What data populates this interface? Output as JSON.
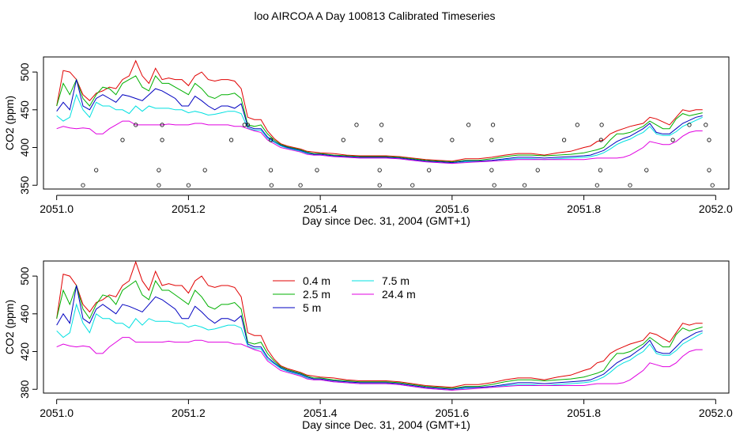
{
  "page": {
    "title": "loo AIRCOA A  Day 100813  Calibrated Timeseries"
  },
  "chart_data": [
    {
      "type": "line",
      "xlabel": "Day since Dec. 31, 2004 (GMT+1)",
      "ylabel": "CO2 (ppm)",
      "xlim": [
        2050.98,
        2052.02
      ],
      "ylim": [
        345,
        520
      ],
      "xticks": [
        "2051.0",
        "2051.2",
        "2051.4",
        "2051.6",
        "2051.8",
        "2052.0"
      ],
      "yticks": [
        "350",
        "400",
        "450",
        "500"
      ],
      "xtick_values": [
        2051.0,
        2051.2,
        2051.4,
        2051.6,
        2051.8,
        2052.0
      ],
      "ytick_values": [
        350,
        400,
        450,
        500
      ],
      "x": [
        2051.0,
        2051.01,
        2051.02,
        2051.03,
        2051.04,
        2051.05,
        2051.06,
        2051.07,
        2051.08,
        2051.09,
        2051.1,
        2051.11,
        2051.12,
        2051.13,
        2051.14,
        2051.15,
        2051.16,
        2051.17,
        2051.18,
        2051.19,
        2051.2,
        2051.21,
        2051.22,
        2051.23,
        2051.24,
        2051.25,
        2051.26,
        2051.27,
        2051.28,
        2051.29,
        2051.3,
        2051.31,
        2051.32,
        2051.33,
        2051.34,
        2051.35,
        2051.36,
        2051.37,
        2051.38,
        2051.39,
        2051.4,
        2051.42,
        2051.44,
        2051.46,
        2051.48,
        2051.5,
        2051.52,
        2051.54,
        2051.56,
        2051.58,
        2051.6,
        2051.62,
        2051.64,
        2051.66,
        2051.68,
        2051.7,
        2051.72,
        2051.74,
        2051.76,
        2051.78,
        2051.8,
        2051.81,
        2051.82,
        2051.83,
        2051.84,
        2051.85,
        2051.86,
        2051.87,
        2051.88,
        2051.89,
        2051.9,
        2051.91,
        2051.92,
        2051.93,
        2051.94,
        2051.95,
        2051.96,
        2051.97,
        2051.98
      ],
      "series": [
        {
          "name": "0.4 m",
          "color": "#e00000",
          "values": [
            455,
            502,
            500,
            490,
            470,
            462,
            472,
            475,
            480,
            478,
            490,
            495,
            515,
            495,
            485,
            505,
            490,
            492,
            490,
            490,
            482,
            495,
            500,
            490,
            488,
            490,
            490,
            488,
            478,
            440,
            437,
            437,
            422,
            412,
            405,
            402,
            400,
            398,
            395,
            394,
            393,
            392,
            390,
            389,
            389,
            389,
            388,
            386,
            384,
            383,
            382,
            385,
            385,
            387,
            390,
            392,
            392,
            390,
            393,
            395,
            400,
            402,
            408,
            410,
            418,
            422,
            425,
            428,
            430,
            432,
            440,
            438,
            434,
            430,
            440,
            450,
            448,
            450,
            450
          ]
        },
        {
          "name": "2.5 m",
          "color": "#00b000",
          "values": [
            455,
            485,
            470,
            490,
            465,
            455,
            470,
            480,
            478,
            470,
            485,
            490,
            495,
            480,
            475,
            495,
            485,
            485,
            480,
            475,
            470,
            485,
            478,
            468,
            465,
            470,
            470,
            472,
            465,
            430,
            428,
            430,
            418,
            410,
            404,
            401,
            399,
            397,
            394,
            392,
            392,
            390,
            389,
            388,
            388,
            388,
            387,
            385,
            383,
            382,
            381,
            383,
            383,
            385,
            388,
            390,
            390,
            389,
            390,
            391,
            393,
            395,
            397,
            400,
            410,
            418,
            418,
            420,
            424,
            428,
            435,
            430,
            425,
            425,
            438,
            445,
            442,
            444,
            446
          ]
        },
        {
          "name": "5 m",
          "color": "#0000c0",
          "values": [
            448,
            460,
            450,
            490,
            455,
            450,
            465,
            470,
            465,
            460,
            470,
            468,
            465,
            462,
            470,
            478,
            475,
            470,
            465,
            455,
            455,
            468,
            462,
            455,
            450,
            455,
            455,
            452,
            458,
            428,
            425,
            425,
            414,
            408,
            403,
            400,
            398,
            396,
            393,
            391,
            391,
            389,
            388,
            387,
            387,
            387,
            386,
            384,
            382,
            381,
            380,
            382,
            382,
            383,
            385,
            387,
            387,
            386,
            387,
            388,
            389,
            390,
            393,
            396,
            402,
            408,
            412,
            415,
            420,
            425,
            432,
            420,
            418,
            418,
            425,
            432,
            436,
            440,
            442
          ]
        },
        {
          "name": "7.5 m",
          "color": "#00e0e0",
          "values": [
            442,
            435,
            440,
            470,
            450,
            440,
            460,
            455,
            455,
            450,
            450,
            445,
            455,
            448,
            455,
            452,
            452,
            452,
            450,
            450,
            446,
            448,
            446,
            443,
            444,
            446,
            448,
            448,
            445,
            426,
            423,
            423,
            412,
            407,
            402,
            399,
            397,
            395,
            392,
            390,
            390,
            388,
            387,
            386,
            386,
            386,
            385,
            383,
            381,
            380,
            379,
            381,
            381,
            382,
            384,
            385,
            385,
            384,
            385,
            386,
            387,
            388,
            390,
            393,
            398,
            404,
            408,
            411,
            416,
            420,
            428,
            418,
            416,
            416,
            421,
            428,
            432,
            436,
            440
          ]
        },
        {
          "name": "24.4 m",
          "color": "#e000e0",
          "values": [
            425,
            428,
            426,
            425,
            426,
            425,
            418,
            418,
            425,
            430,
            435,
            435,
            430,
            430,
            430,
            430,
            430,
            431,
            430,
            430,
            430,
            432,
            432,
            430,
            430,
            430,
            430,
            428,
            428,
            425,
            422,
            420,
            410,
            405,
            400,
            398,
            396,
            394,
            391,
            390,
            390,
            388,
            387,
            386,
            386,
            386,
            385,
            383,
            381,
            380,
            379,
            380,
            381,
            382,
            383,
            384,
            384,
            384,
            384,
            384,
            384,
            385,
            386,
            386,
            386,
            386,
            387,
            390,
            395,
            400,
            408,
            406,
            404,
            404,
            408,
            415,
            420,
            422,
            422
          ]
        }
      ],
      "scatter": {
        "x": [
          2051.04,
          2051.06,
          2051.1,
          2051.12,
          2051.155,
          2051.155,
          2051.16,
          2051.16,
          2051.2,
          2051.225,
          2051.265,
          2051.285,
          2051.29,
          2051.325,
          2051.325,
          2051.326,
          2051.37,
          2051.395,
          2051.435,
          2051.455,
          2051.49,
          2051.49,
          2051.492,
          2051.493,
          2051.54,
          2051.565,
          2051.6,
          2051.625,
          2051.66,
          2051.66,
          2051.662,
          2051.664,
          2051.71,
          2051.73,
          2051.77,
          2051.79,
          2051.82,
          2051.825,
          2051.826,
          2051.827,
          2051.87,
          2051.895,
          2051.935,
          2051.96,
          2051.985,
          2051.99,
          2051.99,
          2051.995
        ],
        "values": [
          350,
          370,
          410,
          430,
          350,
          370,
          410,
          430,
          350,
          370,
          410,
          430,
          430,
          370,
          410,
          350,
          350,
          370,
          410,
          430,
          350,
          370,
          410,
          430,
          350,
          370,
          410,
          430,
          370,
          410,
          430,
          350,
          350,
          370,
          410,
          430,
          350,
          370,
          410,
          430,
          350,
          370,
          410,
          430,
          430,
          370,
          410,
          350
        ]
      }
    },
    {
      "type": "line",
      "xlabel": "Day since Dec. 31, 2004 (GMT+1)",
      "ylabel": "CO2 (ppm)",
      "xlim": [
        2050.98,
        2052.02
      ],
      "ylim": [
        376,
        516
      ],
      "xticks": [
        "2051.0",
        "2051.2",
        "2051.4",
        "2051.6",
        "2051.8",
        "2052.0"
      ],
      "yticks": [
        "380",
        "420",
        "460",
        "500"
      ],
      "xtick_values": [
        2051.0,
        2051.2,
        2051.4,
        2051.6,
        2051.8,
        2052.0
      ],
      "ytick_values": [
        380,
        420,
        460,
        500
      ],
      "legend": [
        {
          "label": "0.4 m",
          "color": "#e00000"
        },
        {
          "label": "2.5 m",
          "color": "#00b000"
        },
        {
          "label": "5 m",
          "color": "#0000c0"
        },
        {
          "label": "7.5 m",
          "color": "#00e0e0"
        },
        {
          "label": "24.4 m",
          "color": "#e000e0"
        }
      ]
    }
  ]
}
